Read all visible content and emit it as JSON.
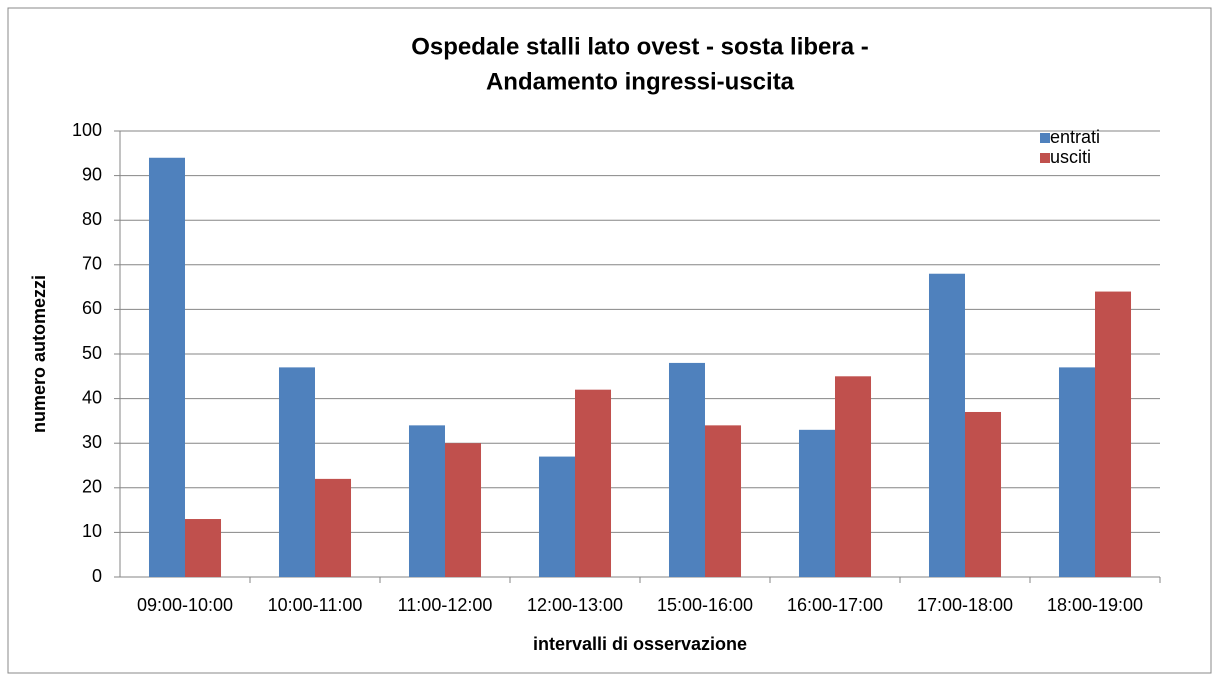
{
  "chart_data": {
    "type": "bar",
    "title": [
      "Ospedale  stalli lato ovest - sosta libera -",
      "Andamento ingressi-uscita"
    ],
    "x_label": "intervalli di osservazione",
    "y_label": "numero automezzi",
    "categories": [
      "09:00-10:00",
      "10:00-11:00",
      "11:00-12:00",
      "12:00-13:00",
      "15:00-16:00",
      "16:00-17:00",
      "17:00-18:00",
      "18:00-19:00"
    ],
    "series": [
      {
        "name": "entrati",
        "color": "#4f81bd",
        "values": [
          94,
          47,
          34,
          27,
          48,
          33,
          68,
          47
        ]
      },
      {
        "name": "usciti",
        "color": "#c0504d",
        "values": [
          13,
          22,
          30,
          42,
          34,
          45,
          37,
          64
        ]
      }
    ],
    "ylim": [
      0,
      100
    ],
    "yticks": [
      0,
      10,
      20,
      30,
      40,
      50,
      60,
      70,
      80,
      90,
      100
    ],
    "grid": true,
    "legend": "top-right"
  }
}
